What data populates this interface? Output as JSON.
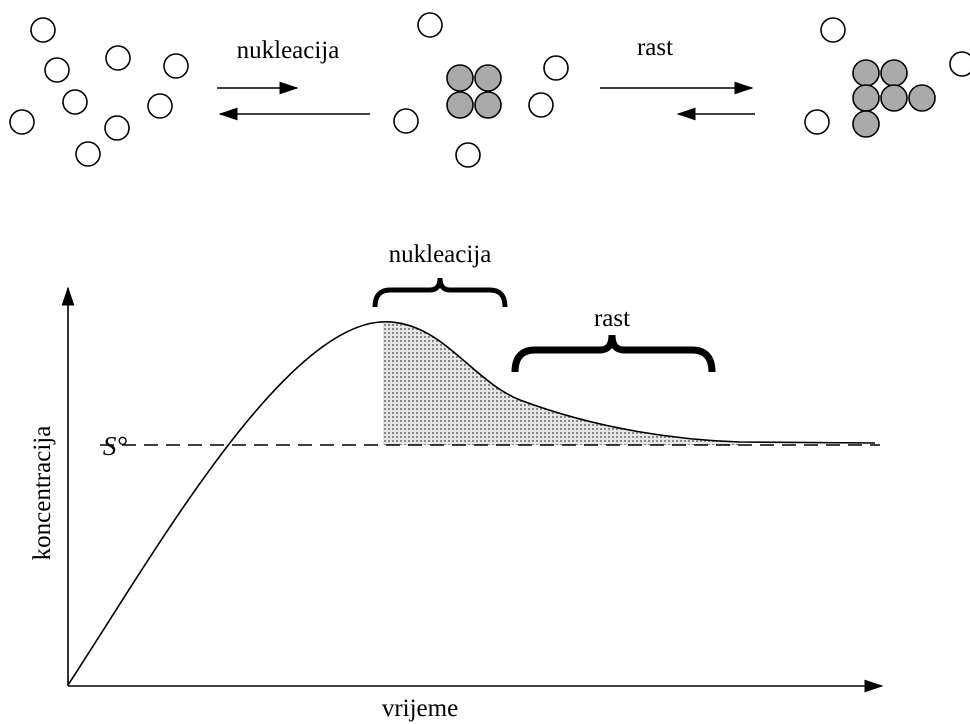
{
  "top": {
    "labels": [
      "nukleacija",
      "rast"
    ]
  },
  "graph": {
    "phases": [
      "nukleacija",
      "rast"
    ],
    "level_label": "S°",
    "y_label": "koncentracija",
    "x_label": "vrijeme"
  }
}
